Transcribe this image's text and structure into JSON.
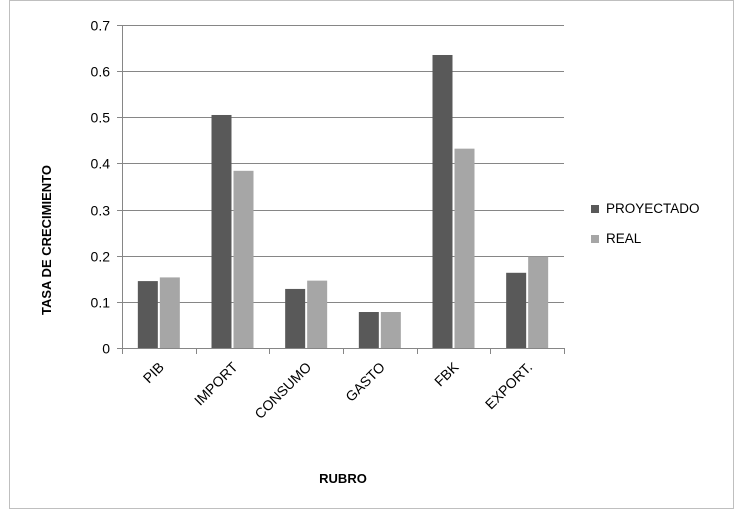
{
  "chart_data": {
    "type": "bar",
    "title": "",
    "xlabel": "RUBRO",
    "ylabel": "TASA DE CRECIMIENTO",
    "categories": [
      "PIB",
      "IMPORT",
      "CONSUMO",
      "GASTO",
      "FBK",
      "EXPORT."
    ],
    "series": [
      {
        "name": "PROYECTADO",
        "color": "#595959",
        "values": [
          0.145,
          0.505,
          0.128,
          0.078,
          0.635,
          0.163
        ]
      },
      {
        "name": "REAL",
        "color": "#a6a6a6",
        "values": [
          0.153,
          0.384,
          0.146,
          0.078,
          0.432,
          0.198
        ]
      }
    ],
    "ylim": [
      0,
      0.7
    ],
    "yticks": [
      "0",
      "0.1",
      "0.2",
      "0.3",
      "0.4",
      "0.5",
      "0.6",
      "0.7"
    ],
    "grid": true,
    "legend_position": "right"
  }
}
